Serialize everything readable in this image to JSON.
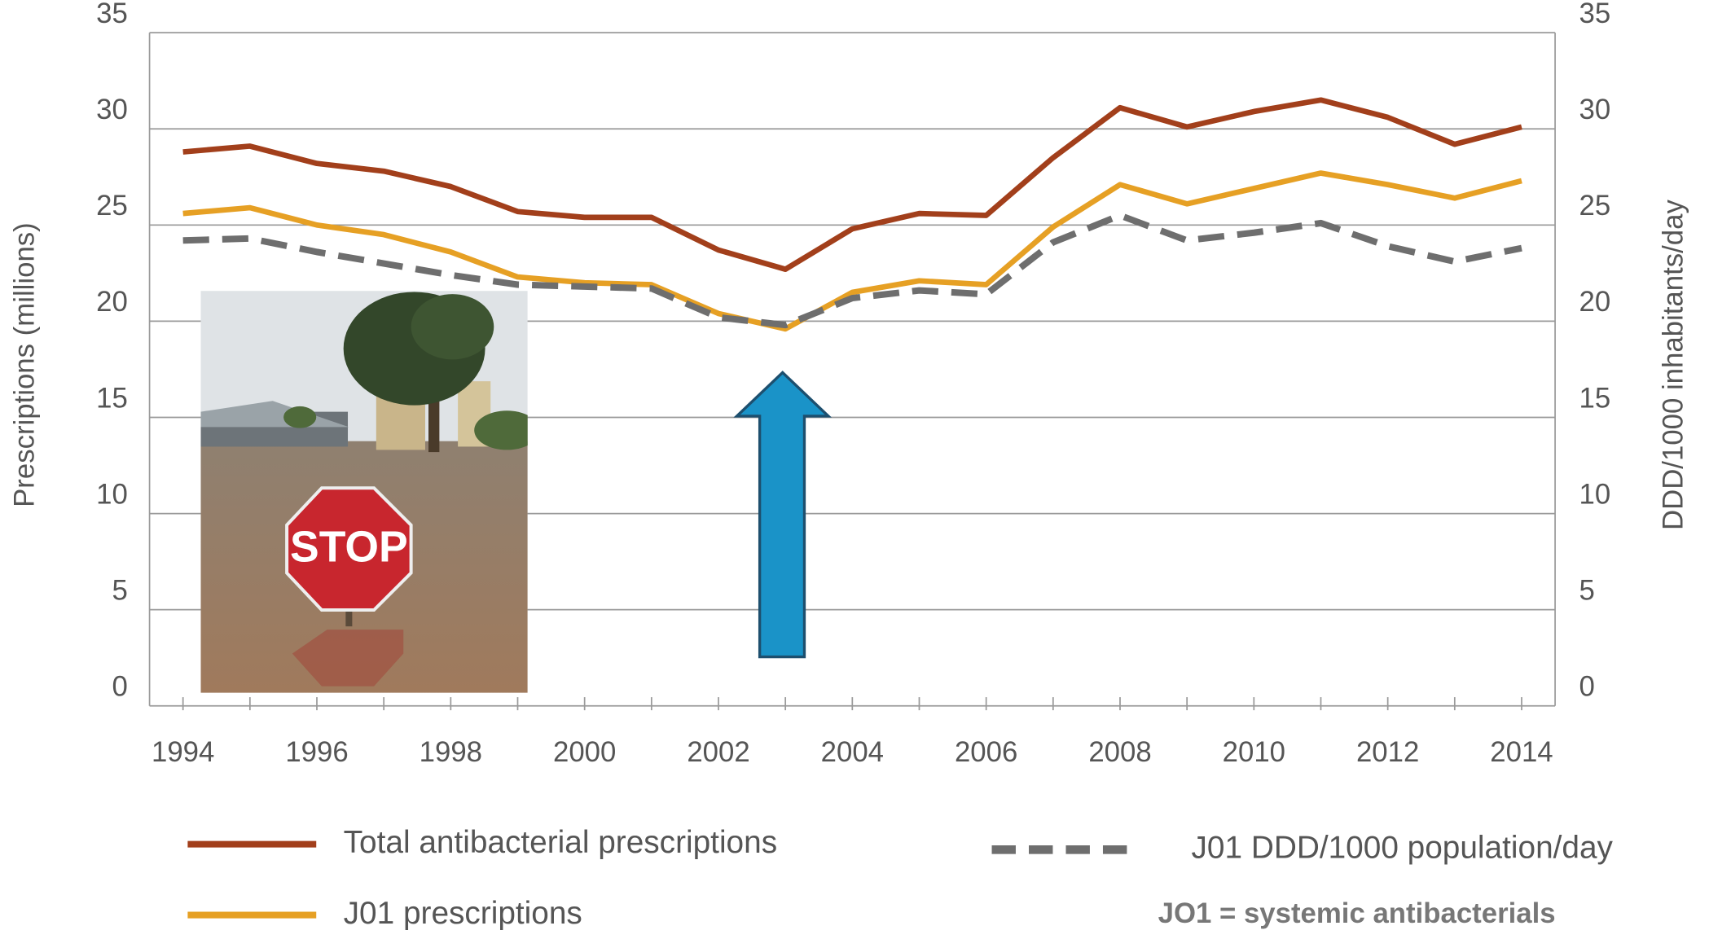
{
  "chart_data": {
    "type": "line",
    "y_label": "Prescriptions (millions)",
    "y2_label": "DDD/1000 inhabitants/day",
    "x": [
      1994,
      1995,
      1996,
      1997,
      1998,
      1999,
      2000,
      2001,
      2002,
      2003,
      2004,
      2005,
      2006,
      2007,
      2008,
      2009,
      2010,
      2011,
      2012,
      2013,
      2014
    ],
    "series": [
      {
        "name": "Total antibacterial prescriptions",
        "color": "#a23f1b",
        "values": [
          28.8,
          29.1,
          28.2,
          27.8,
          27.0,
          25.7,
          25.4,
          25.4,
          23.7,
          22.7,
          24.8,
          25.6,
          25.5,
          28.5,
          31.1,
          30.1,
          30.9,
          31.5,
          30.6,
          29.2,
          30.1
        ]
      },
      {
        "name": "J01 prescriptions",
        "color": "#e6a024",
        "values": [
          25.6,
          25.9,
          25.0,
          24.5,
          23.6,
          22.3,
          22.0,
          21.9,
          20.4,
          19.6,
          21.5,
          22.1,
          21.9,
          24.9,
          27.1,
          26.1,
          26.9,
          27.7,
          27.1,
          26.4,
          27.3
        ]
      },
      {
        "name": "J01 DDD/1000 population/day",
        "color": "#6e6e6e",
        "axis": "y2",
        "dashed": true,
        "values": [
          24.2,
          24.3,
          23.6,
          23.0,
          22.4,
          21.9,
          21.8,
          21.7,
          20.2,
          19.8,
          21.2,
          21.6,
          21.4,
          24.1,
          25.5,
          24.2,
          24.6,
          25.1,
          23.9,
          23.1,
          23.8
        ]
      }
    ],
    "xlim": [
      1993.5,
      2014.5
    ],
    "xticks": [
      1994,
      1996,
      1998,
      2000,
      2002,
      2004,
      2006,
      2008,
      2010,
      2012,
      2014
    ],
    "ylim": [
      0,
      35
    ],
    "yticks": [
      0,
      5,
      10,
      15,
      20,
      25,
      30,
      35
    ],
    "y2lim": [
      0,
      35
    ],
    "y2ticks": [
      0,
      5,
      10,
      15,
      20,
      25,
      30,
      35
    ],
    "grid": true,
    "annotation": "JO1 = systemic antibacterials",
    "inset_sign": "STOP"
  }
}
